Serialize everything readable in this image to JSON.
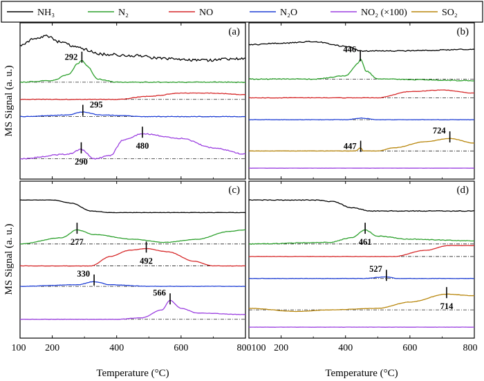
{
  "figure": {
    "y_axis_label_top": "MS  Signal (a. u.)",
    "y_axis_label_bottom": "MS  Signal (a. u.)",
    "x_axis_label_left": "Temperature (°C)",
    "x_axis_label_right": "Temperature (°C)"
  },
  "legend": [
    {
      "label": "NH₃",
      "color": "#000000"
    },
    {
      "label": "N₂",
      "color": "#2ca02c"
    },
    {
      "label": "NO",
      "color": "#d62728"
    },
    {
      "label": "N₂O",
      "color": "#1f3fd6"
    },
    {
      "label": "NO₂ (×100)",
      "color": "#9b3fe0"
    },
    {
      "label": "SO₂",
      "color": "#b8860b"
    }
  ],
  "chart_data": [
    {
      "type": "line",
      "panel": "(a)",
      "xlim": [
        100,
        800
      ],
      "ticks": [
        200,
        400,
        600,
        800
      ],
      "series": [
        {
          "name": "NH3",
          "color": "#000000",
          "noise": 4,
          "baseline": 0.96,
          "points": [
            [
              100,
              0.86
            ],
            [
              150,
              0.9
            ],
            [
              180,
              0.92
            ],
            [
              220,
              0.88
            ],
            [
              280,
              0.84
            ],
            [
              350,
              0.8
            ],
            [
              450,
              0.79
            ],
            [
              550,
              0.77
            ],
            [
              650,
              0.76
            ],
            [
              800,
              0.77
            ]
          ]
        },
        {
          "name": "N2",
          "color": "#2ca02c",
          "noise": 1.2,
          "baseline": 0.62,
          "points": [
            [
              100,
              0.62
            ],
            [
              200,
              0.63
            ],
            [
              250,
              0.67
            ],
            [
              280,
              0.74
            ],
            [
              292,
              0.76
            ],
            [
              310,
              0.72
            ],
            [
              340,
              0.64
            ],
            [
              400,
              0.62
            ],
            [
              800,
              0.62
            ]
          ]
        },
        {
          "name": "NO",
          "color": "#d62728",
          "noise": 0.8,
          "baseline": 0.51,
          "points": [
            [
              100,
              0.51
            ],
            [
              400,
              0.51
            ],
            [
              500,
              0.53
            ],
            [
              600,
              0.55
            ],
            [
              700,
              0.55
            ],
            [
              800,
              0.54
            ]
          ]
        },
        {
          "name": "N2O",
          "color": "#1f3fd6",
          "noise": 0.8,
          "baseline": 0.4,
          "points": [
            [
              100,
              0.4
            ],
            [
              250,
              0.41
            ],
            [
              295,
              0.43
            ],
            [
              350,
              0.41
            ],
            [
              500,
              0.4
            ],
            [
              800,
              0.4
            ]
          ]
        },
        {
          "name": "NO2 (×100)",
          "color": "#9b3fe0",
          "noise": 1.5,
          "baseline": 0.13,
          "points": [
            [
              100,
              0.13
            ],
            [
              250,
              0.16
            ],
            [
              290,
              0.19
            ],
            [
              330,
              0.13
            ],
            [
              380,
              0.15
            ],
            [
              420,
              0.25
            ],
            [
              480,
              0.29
            ],
            [
              600,
              0.26
            ],
            [
              700,
              0.2
            ],
            [
              800,
              0.16
            ]
          ]
        }
      ],
      "annotations": [
        {
          "label": "292",
          "x": 292,
          "y": 0.78,
          "text_side": "left"
        },
        {
          "label": "295",
          "x": 295,
          "y": 0.44,
          "text_side": "right_above"
        },
        {
          "label": "290",
          "x": 290,
          "y": 0.2,
          "text_side": "below"
        },
        {
          "label": "480",
          "x": 480,
          "y": 0.3,
          "text_side": "below"
        }
      ]
    },
    {
      "type": "line",
      "panel": "(b)",
      "xlim": [
        100,
        800
      ],
      "ticks": [
        200,
        400,
        600,
        800
      ],
      "series": [
        {
          "name": "NH3",
          "color": "#000000",
          "noise": 1.5,
          "baseline": 0.86,
          "points": [
            [
              100,
              0.86
            ],
            [
              200,
              0.87
            ],
            [
              300,
              0.88
            ],
            [
              400,
              0.85
            ],
            [
              450,
              0.82
            ],
            [
              550,
              0.82
            ],
            [
              800,
              0.83
            ]
          ]
        },
        {
          "name": "N2",
          "color": "#2ca02c",
          "noise": 1.2,
          "baseline": 0.64,
          "points": [
            [
              100,
              0.64
            ],
            [
              300,
              0.64
            ],
            [
              400,
              0.66
            ],
            [
              440,
              0.74
            ],
            [
              446,
              0.77
            ],
            [
              465,
              0.69
            ],
            [
              500,
              0.64
            ],
            [
              800,
              0.63
            ]
          ]
        },
        {
          "name": "NO",
          "color": "#d62728",
          "noise": 0.6,
          "baseline": 0.52,
          "points": [
            [
              100,
              0.52
            ],
            [
              500,
              0.52
            ],
            [
              600,
              0.56
            ],
            [
              700,
              0.57
            ],
            [
              800,
              0.55
            ]
          ]
        },
        {
          "name": "N2O",
          "color": "#1f3fd6",
          "noise": 0.6,
          "baseline": 0.38,
          "points": [
            [
              100,
              0.38
            ],
            [
              400,
              0.38
            ],
            [
              450,
              0.39
            ],
            [
              500,
              0.38
            ],
            [
              800,
              0.38
            ]
          ]
        },
        {
          "name": "SO2",
          "color": "#b8860b",
          "noise": 0.4,
          "baseline": 0.18,
          "points": [
            [
              100,
              0.18
            ],
            [
              430,
              0.18
            ],
            [
              447,
              0.2
            ],
            [
              455,
              0.18
            ],
            [
              500,
              0.18
            ],
            [
              550,
              0.2
            ],
            [
              650,
              0.24
            ],
            [
              724,
              0.26
            ],
            [
              800,
              0.23
            ]
          ]
        },
        {
          "name": "NO2 (×100)",
          "color": "#9b3fe0",
          "noise": 0.2,
          "baseline": 0.07,
          "points": [
            [
              100,
              0.07
            ],
            [
              800,
              0.07
            ]
          ]
        }
      ],
      "annotations": [
        {
          "label": "446",
          "x": 446,
          "y": 0.79,
          "text_side": "left_above"
        },
        {
          "label": "447",
          "x": 447,
          "y": 0.21,
          "text_side": "left"
        },
        {
          "label": "724",
          "x": 724,
          "y": 0.27,
          "text_side": "left_above"
        }
      ]
    },
    {
      "type": "line",
      "panel": "(c)",
      "xlim": [
        100,
        800
      ],
      "ticks": [
        200,
        400,
        600,
        800
      ],
      "series": [
        {
          "name": "NH3",
          "color": "#000000",
          "noise": 0.4,
          "baseline": 0.88,
          "points": [
            [
              100,
              0.88
            ],
            [
              200,
              0.88
            ],
            [
              260,
              0.86
            ],
            [
              320,
              0.81
            ],
            [
              380,
              0.8
            ],
            [
              800,
              0.8
            ]
          ]
        },
        {
          "name": "N2",
          "color": "#2ca02c",
          "noise": 0.5,
          "baseline": 0.6,
          "points": [
            [
              100,
              0.6
            ],
            [
              230,
              0.64
            ],
            [
              277,
              0.69
            ],
            [
              330,
              0.66
            ],
            [
              450,
              0.63
            ],
            [
              550,
              0.61
            ],
            [
              650,
              0.63
            ],
            [
              750,
              0.68
            ],
            [
              800,
              0.69
            ]
          ]
        },
        {
          "name": "NO",
          "color": "#d62728",
          "noise": 0.4,
          "baseline": 0.46,
          "points": [
            [
              100,
              0.46
            ],
            [
              320,
              0.46
            ],
            [
              380,
              0.52
            ],
            [
              440,
              0.56
            ],
            [
              492,
              0.57
            ],
            [
              560,
              0.55
            ],
            [
              640,
              0.49
            ],
            [
              700,
              0.46
            ],
            [
              800,
              0.46
            ]
          ]
        },
        {
          "name": "N2O",
          "color": "#1f3fd6",
          "noise": 0.5,
          "baseline": 0.33,
          "points": [
            [
              100,
              0.33
            ],
            [
              280,
              0.34
            ],
            [
              330,
              0.36
            ],
            [
              380,
              0.34
            ],
            [
              500,
              0.33
            ],
            [
              800,
              0.33
            ]
          ]
        },
        {
          "name": "NO2 (×100)",
          "color": "#9b3fe0",
          "noise": 0.6,
          "baseline": 0.12,
          "points": [
            [
              100,
              0.12
            ],
            [
              400,
              0.12
            ],
            [
              480,
              0.13
            ],
            [
              540,
              0.18
            ],
            [
              566,
              0.24
            ],
            [
              600,
              0.19
            ],
            [
              650,
              0.16
            ],
            [
              800,
              0.15
            ]
          ]
        }
      ],
      "annotations": [
        {
          "label": "277",
          "x": 277,
          "y": 0.7,
          "text_side": "below"
        },
        {
          "label": "492",
          "x": 492,
          "y": 0.58,
          "text_side": "below"
        },
        {
          "label": "330",
          "x": 330,
          "y": 0.37,
          "text_side": "left_above"
        },
        {
          "label": "566",
          "x": 566,
          "y": 0.25,
          "text_side": "left_above"
        }
      ]
    },
    {
      "type": "line",
      "panel": "(d)",
      "xlim": [
        100,
        800
      ],
      "ticks": [
        200,
        400,
        600,
        800
      ],
      "series": [
        {
          "name": "NH3",
          "color": "#000000",
          "noise": 1.0,
          "baseline": 0.88,
          "points": [
            [
              100,
              0.88
            ],
            [
              300,
              0.88
            ],
            [
              360,
              0.87
            ],
            [
              420,
              0.83
            ],
            [
              480,
              0.81
            ],
            [
              800,
              0.81
            ]
          ]
        },
        {
          "name": "N2",
          "color": "#2ca02c",
          "noise": 1.0,
          "baseline": 0.6,
          "points": [
            [
              100,
              0.6
            ],
            [
              350,
              0.61
            ],
            [
              420,
              0.64
            ],
            [
              461,
              0.69
            ],
            [
              500,
              0.65
            ],
            [
              600,
              0.63
            ],
            [
              800,
              0.62
            ]
          ]
        },
        {
          "name": "NO",
          "color": "#d62728",
          "noise": 0.4,
          "baseline": 0.52,
          "points": [
            [
              100,
              0.52
            ],
            [
              550,
              0.52
            ],
            [
              650,
              0.56
            ],
            [
              720,
              0.59
            ],
            [
              800,
              0.59
            ]
          ]
        },
        {
          "name": "N2O",
          "color": "#1f3fd6",
          "noise": 0.5,
          "baseline": 0.38,
          "points": [
            [
              100,
              0.38
            ],
            [
              450,
              0.38
            ],
            [
              527,
              0.39
            ],
            [
              560,
              0.38
            ],
            [
              800,
              0.38
            ]
          ]
        },
        {
          "name": "SO2",
          "color": "#b8860b",
          "noise": 0.4,
          "baseline": 0.18,
          "points": [
            [
              100,
              0.19
            ],
            [
              250,
              0.17
            ],
            [
              350,
              0.18
            ],
            [
              500,
              0.19
            ],
            [
              600,
              0.23
            ],
            [
              714,
              0.28
            ],
            [
              800,
              0.27
            ]
          ]
        },
        {
          "name": "NO2 (×100)",
          "color": "#9b3fe0",
          "noise": 0.3,
          "baseline": 0.07,
          "points": [
            [
              100,
              0.07
            ],
            [
              800,
              0.07
            ]
          ]
        }
      ],
      "annotations": [
        {
          "label": "461",
          "x": 461,
          "y": 0.7,
          "text_side": "below"
        },
        {
          "label": "527",
          "x": 527,
          "y": 0.4,
          "text_side": "left_above"
        },
        {
          "label": "714",
          "x": 714,
          "y": 0.29,
          "text_side": "below"
        }
      ]
    }
  ]
}
